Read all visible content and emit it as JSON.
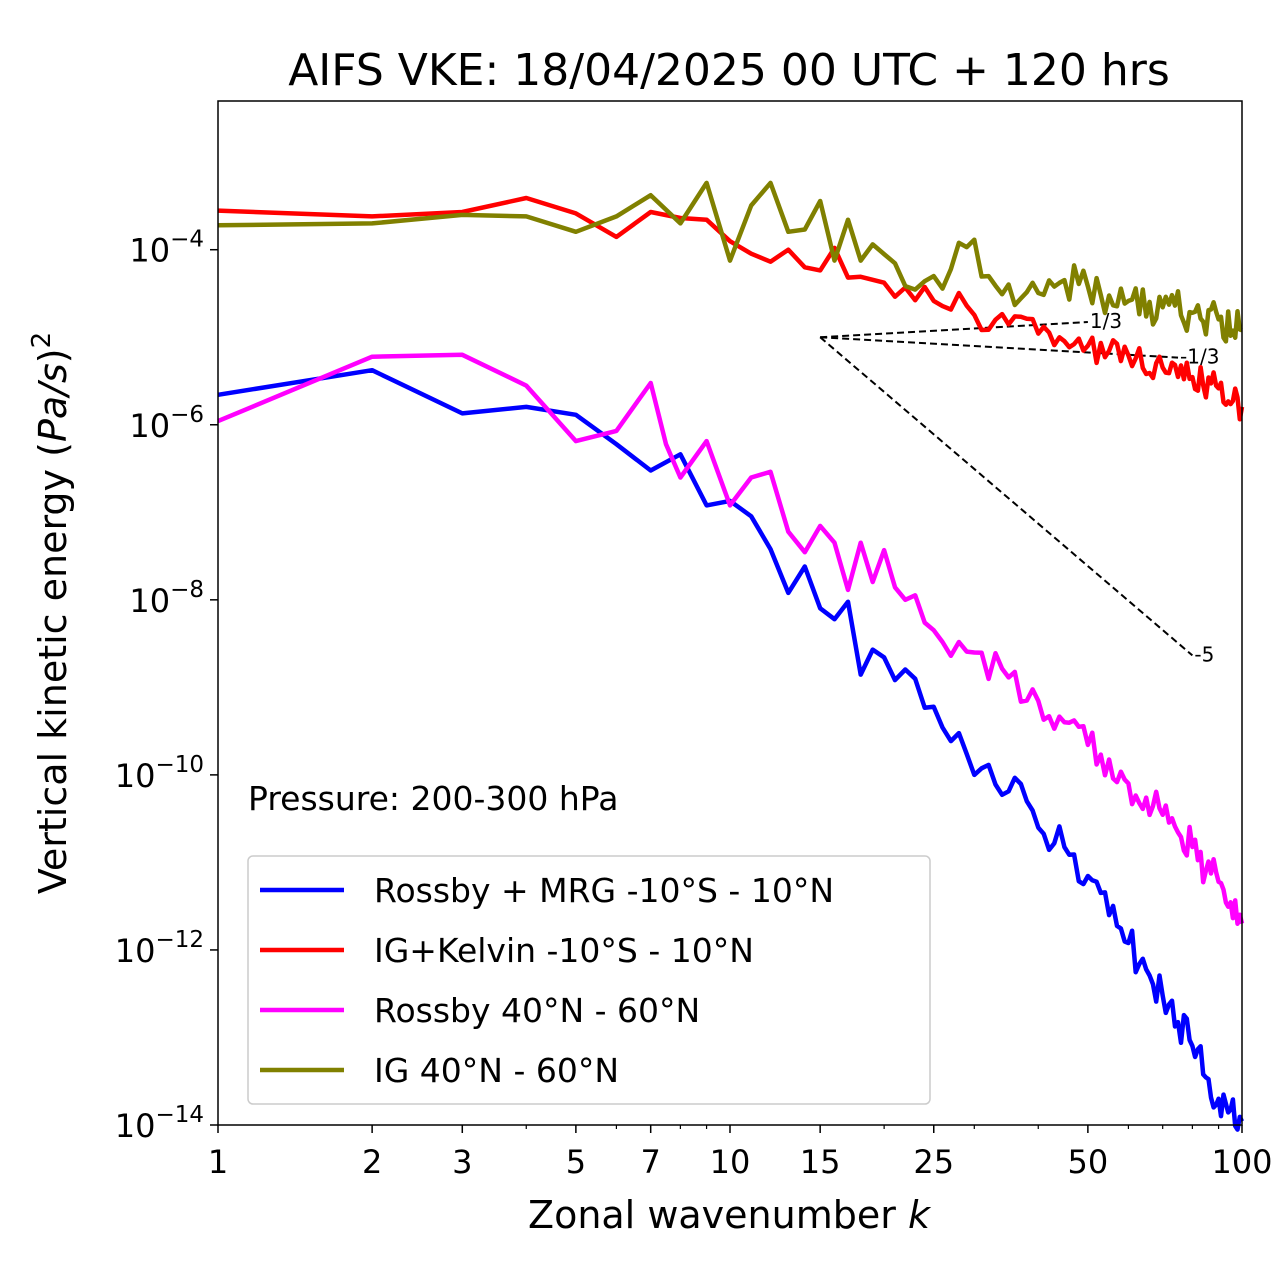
{
  "chart_data": {
    "type": "line",
    "title": "AIFS VKE: 18/04/2025 00 UTC + 120 hrs",
    "xlabel": "Zonal wavenumber k",
    "xlabel_prefix": "Zonal wavenumber ",
    "xlabel_var": "k",
    "ylabel": "Vertical kinetic energy (Pa/s)^2",
    "ylabel_prefix": "Vertical kinetic energy (",
    "ylabel_var": "Pa/s",
    "ylabel_suffix": ")",
    "ylabel_exp": "2",
    "x_scale": "log",
    "y_scale": "log",
    "xlim": [
      1,
      100
    ],
    "ylim": [
      1e-14,
      0.005
    ],
    "x_ticks": [
      1,
      2,
      3,
      5,
      7,
      10,
      15,
      25,
      50,
      100
    ],
    "x_tick_labels": [
      "1",
      "2",
      "3",
      "5",
      "7",
      "10",
      "15",
      "25",
      "50",
      "100"
    ],
    "y_ticks": [
      {
        "value": 0.0001,
        "base": "10",
        "exp": "−4"
      },
      {
        "value": 1e-06,
        "base": "10",
        "exp": "−6"
      },
      {
        "value": 1e-08,
        "base": "10",
        "exp": "−8"
      },
      {
        "value": 1e-10,
        "base": "10",
        "exp": "−10"
      },
      {
        "value": 1e-12,
        "base": "10",
        "exp": "−12"
      },
      {
        "value": 1e-14,
        "base": "10",
        "exp": "−14"
      }
    ],
    "grid": false,
    "legend_position": "lower-left",
    "annotation": "Pressure: 200-300 hPa",
    "series": [
      {
        "name": "Rossby + MRG -10°S - 10°N",
        "color": "#0000ff",
        "anchors": [
          [
            1,
            2.2e-06
          ],
          [
            2,
            4.2e-06
          ],
          [
            3,
            1.35e-06
          ],
          [
            4,
            1.6e-06
          ],
          [
            5,
            1.3e-06
          ],
          [
            6,
            6e-07
          ],
          [
            7,
            3e-07
          ],
          [
            8,
            4.6e-07
          ],
          [
            9,
            1.2e-07
          ],
          [
            10,
            1.35e-07
          ],
          [
            11,
            9e-08
          ],
          [
            12,
            3.8e-08
          ],
          [
            13,
            1.2e-08
          ],
          [
            14,
            2.4e-08
          ],
          [
            15,
            8e-09
          ],
          [
            16,
            6e-09
          ],
          [
            17,
            9.5e-09
          ],
          [
            18,
            1.4e-09
          ],
          [
            19,
            2.7e-09
          ],
          [
            20,
            2.2e-09
          ],
          [
            22,
            1.6e-09
          ],
          [
            25,
            6e-10
          ],
          [
            28,
            3e-10
          ],
          [
            30,
            1e-10
          ],
          [
            32,
            1.3e-10
          ],
          [
            35,
            6.5e-11
          ],
          [
            38,
            5e-11
          ],
          [
            40,
            2.5e-11
          ],
          [
            45,
            1.5e-11
          ],
          [
            50,
            7e-12
          ],
          [
            55,
            2.5e-12
          ],
          [
            60,
            1.2e-12
          ],
          [
            65,
            6e-13
          ],
          [
            70,
            3e-13
          ],
          [
            75,
            1.5e-13
          ],
          [
            80,
            8e-14
          ],
          [
            85,
            3.5e-14
          ],
          [
            90,
            2e-14
          ],
          [
            95,
            1.5e-14
          ],
          [
            100,
            1.1e-14
          ]
        ]
      },
      {
        "name": "IG+Kelvin -10°S - 10°N",
        "color": "#ff0000",
        "anchors": [
          [
            1,
            0.00028
          ],
          [
            2,
            0.00024
          ],
          [
            3,
            0.00027
          ],
          [
            4,
            0.00039
          ],
          [
            5,
            0.00026
          ],
          [
            6,
            0.00014
          ],
          [
            7,
            0.00027
          ],
          [
            8,
            0.00023
          ],
          [
            9,
            0.00022
          ],
          [
            10,
            0.000125
          ],
          [
            11,
            9e-05
          ],
          [
            12,
            7.3e-05
          ],
          [
            13,
            0.0001
          ],
          [
            14,
            6.3e-05
          ],
          [
            15,
            5.8e-05
          ],
          [
            16,
            0.000105
          ],
          [
            17,
            4.8e-05
          ],
          [
            18,
            4.9e-05
          ],
          [
            20,
            4.2e-05
          ],
          [
            22,
            3.7e-05
          ],
          [
            25,
            2.6e-05
          ],
          [
            28,
            3.2e-05
          ],
          [
            30,
            1.8e-05
          ],
          [
            35,
            1.4e-05
          ],
          [
            40,
            1.1e-05
          ],
          [
            45,
            9e-06
          ],
          [
            50,
            8e-06
          ],
          [
            55,
            7e-06
          ],
          [
            60,
            6.2e-06
          ],
          [
            70,
            4.5e-06
          ],
          [
            80,
            3.5e-06
          ],
          [
            90,
            2.6e-06
          ],
          [
            100,
            1.6e-06
          ]
        ]
      },
      {
        "name": "Rossby 40°N - 60°N",
        "color": "#ff00ff",
        "anchors": [
          [
            1,
            1.1e-06
          ],
          [
            2,
            6e-06
          ],
          [
            3,
            6.3e-06
          ],
          [
            4,
            2.8e-06
          ],
          [
            5,
            6.5e-07
          ],
          [
            6,
            8.5e-07
          ],
          [
            7,
            3e-06
          ],
          [
            7.5,
            6e-07
          ],
          [
            8,
            2.5e-07
          ],
          [
            9,
            6.5e-07
          ],
          [
            10,
            1.2e-07
          ],
          [
            11,
            2.5e-07
          ],
          [
            12,
            2.9e-07
          ],
          [
            13,
            6e-08
          ],
          [
            14,
            3.5e-08
          ],
          [
            15,
            7e-08
          ],
          [
            16,
            4.5e-08
          ],
          [
            17,
            1.3e-08
          ],
          [
            18,
            4.5e-08
          ],
          [
            19,
            1.6e-08
          ],
          [
            20,
            3.7e-08
          ],
          [
            22,
            1e-08
          ],
          [
            25,
            4.5e-09
          ],
          [
            28,
            3.3e-09
          ],
          [
            30,
            2.5e-09
          ],
          [
            35,
            1.3e-09
          ],
          [
            40,
            7e-10
          ],
          [
            45,
            4e-10
          ],
          [
            50,
            2.2e-10
          ],
          [
            55,
            1.5e-10
          ],
          [
            60,
            8e-11
          ],
          [
            65,
            5.5e-11
          ],
          [
            70,
            3.5e-11
          ],
          [
            75,
            2.2e-11
          ],
          [
            80,
            1.5e-11
          ],
          [
            85,
            8e-12
          ],
          [
            90,
            6e-12
          ],
          [
            95,
            3.5e-12
          ],
          [
            100,
            2e-12
          ]
        ]
      },
      {
        "name": "IG 40°N - 60°N",
        "color": "#808000",
        "anchors": [
          [
            1,
            0.00019
          ],
          [
            2,
            0.0002
          ],
          [
            3,
            0.00025
          ],
          [
            4,
            0.00024
          ],
          [
            5,
            0.00016
          ],
          [
            6,
            0.00024
          ],
          [
            7,
            0.00042
          ],
          [
            8,
            0.0002
          ],
          [
            9,
            0.00058
          ],
          [
            10,
            7.5e-05
          ],
          [
            11,
            0.00032
          ],
          [
            12,
            0.00058
          ],
          [
            13,
            0.00016
          ],
          [
            14,
            0.00017
          ],
          [
            15,
            0.00036
          ],
          [
            16,
            7.5e-05
          ],
          [
            17,
            0.00022
          ],
          [
            18,
            7.5e-05
          ],
          [
            19,
            0.000115
          ],
          [
            21,
            7e-05
          ],
          [
            23,
            3.5e-05
          ],
          [
            25,
            5e-05
          ],
          [
            27,
            6e-05
          ],
          [
            28,
            0.00012
          ],
          [
            30,
            0.00013
          ],
          [
            32,
            5e-05
          ],
          [
            35,
            4e-05
          ],
          [
            40,
            3.2e-05
          ],
          [
            45,
            4.5e-05
          ],
          [
            50,
            3.8e-05
          ],
          [
            55,
            3e-05
          ],
          [
            60,
            2.6e-05
          ],
          [
            70,
            2.2e-05
          ],
          [
            80,
            1.9e-05
          ],
          [
            90,
            1.6e-05
          ],
          [
            100,
            1.2e-05
          ]
        ]
      }
    ],
    "reference_slopes": [
      {
        "label": "1/3",
        "x_start": 15,
        "x_end": 50,
        "y_start": 1e-05
      },
      {
        "label": "-1/3",
        "x_start": 15,
        "x_end": 75,
        "y_start": 1e-05
      },
      {
        "label": "-5",
        "x_start": 15,
        "x_end": 80,
        "y_start": 1e-05
      }
    ]
  }
}
